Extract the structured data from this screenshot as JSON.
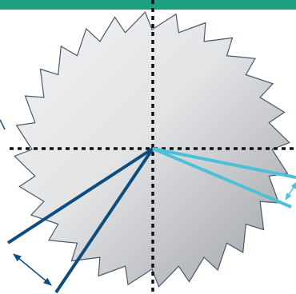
{
  "colors": {
    "header_bar": "#1BA17F",
    "saw_blade_light": "#F2F2F3",
    "saw_blade_dark": "#9EA1A6",
    "saw_blade_outline": "#47596B",
    "dotted_axes": "#111111",
    "dark_lines": "#0D4C7E",
    "light_lines": "#4CC0D8"
  },
  "icons": {
    "blade": "circular-saw-blade-icon",
    "arrow": "double-headed-arrow-icon"
  }
}
